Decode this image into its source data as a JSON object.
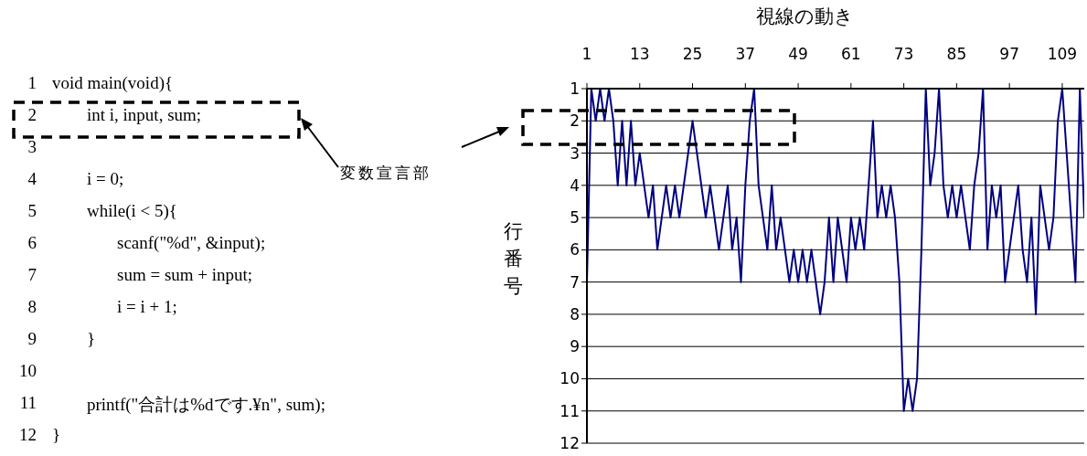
{
  "chart_data": {
    "type": "line",
    "title": "視線の動き",
    "ylabel": "行番号",
    "annotations": [
      "1\tvoid main(void){",
      "2\t\tint i, input, sum;",
      "3",
      "4\t\ti = 0;",
      "5\t\twhile(i < 5){",
      "6\t\t\tscanf(\"%d\", &input);",
      "7\t\t\tsum = sum + input;",
      "8\t\t\ti = i + 1;",
      "9\t\t}",
      "10",
      "11\t\tprintf(\"合計は%dです.¥n\", sum);",
      "12\t}",
      "変数宣言部"
    ],
    "x": [
      1,
      2,
      3,
      4,
      5,
      6,
      7,
      8,
      9,
      10,
      11,
      12,
      13,
      14,
      15,
      16,
      17,
      18,
      19,
      20,
      21,
      22,
      23,
      24,
      25,
      26,
      27,
      28,
      29,
      30,
      31,
      32,
      33,
      34,
      35,
      36,
      37,
      38,
      39,
      40,
      41,
      42,
      43,
      44,
      45,
      46,
      47,
      48,
      49,
      50,
      51,
      52,
      53,
      54,
      55,
      56,
      57,
      58,
      59,
      60,
      61,
      62,
      63,
      64,
      65,
      66,
      67,
      68,
      69,
      70,
      71,
      72,
      73,
      74,
      75,
      76,
      77,
      78,
      79,
      80,
      81,
      82,
      83,
      84,
      85,
      86,
      87,
      88,
      89,
      90,
      91,
      92,
      93,
      94,
      95,
      96,
      97,
      98,
      99,
      100,
      101,
      102,
      103,
      104,
      105,
      106,
      107,
      108,
      109,
      110,
      111,
      112,
      113,
      114
    ],
    "series": [
      {
        "color": "#000080",
        "values": [
          7,
          1,
          2,
          1,
          2,
          1,
          2,
          4,
          2,
          4,
          2,
          4,
          3,
          4,
          5,
          4,
          6,
          5,
          4,
          5,
          4,
          5,
          4,
          3,
          2,
          3,
          4,
          5,
          4,
          5,
          6,
          5,
          4,
          6,
          5,
          7,
          4,
          2,
          1,
          4,
          5,
          6,
          4,
          6,
          5,
          6,
          7,
          6,
          7,
          6,
          7,
          6,
          7,
          8,
          7,
          5,
          7,
          5,
          6,
          7,
          5,
          6,
          5,
          6,
          4,
          2,
          5,
          4,
          5,
          4,
          5,
          7,
          11,
          10,
          11,
          10,
          6,
          1,
          4,
          3,
          1,
          4,
          5,
          4,
          5,
          4,
          5,
          6,
          4,
          3,
          1,
          6,
          4,
          5,
          4,
          7,
          6,
          5,
          4,
          6,
          7,
          5,
          8,
          4,
          5,
          6,
          5,
          2,
          1,
          3,
          5,
          7,
          1,
          5
        ]
      }
    ],
    "xlim": [
      1,
      114
    ],
    "xticks": [
      1,
      13,
      25,
      37,
      49,
      61,
      73,
      85,
      97,
      109
    ],
    "ylim": [
      12,
      1
    ],
    "yticks": [
      1,
      2,
      3,
      4,
      5,
      6,
      7,
      8,
      9,
      10,
      11,
      12
    ],
    "grid": "y"
  }
}
